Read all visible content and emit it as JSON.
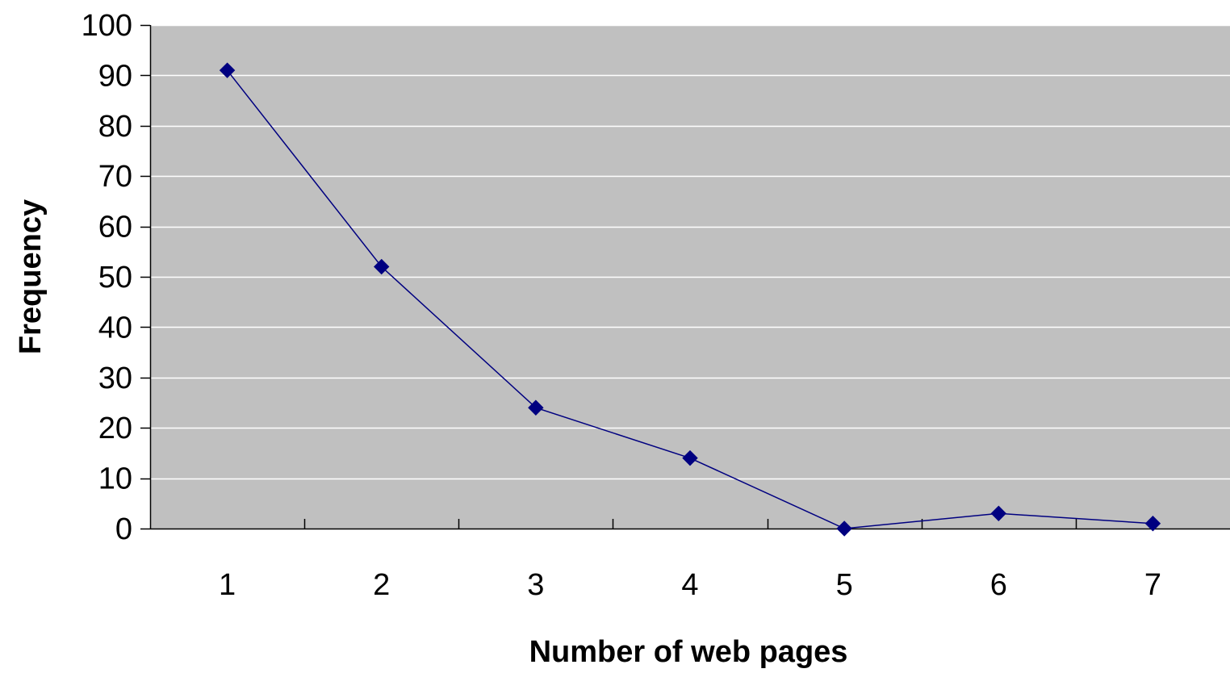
{
  "chart_data": {
    "type": "line",
    "x": [
      1,
      2,
      3,
      4,
      5,
      6,
      7
    ],
    "categories": [
      "1",
      "2",
      "3",
      "4",
      "5",
      "6",
      "7"
    ],
    "series": [
      {
        "values": [
          91,
          52,
          24,
          14,
          0,
          3,
          1
        ]
      }
    ],
    "xlabel": "Number of web pages",
    "ylabel": "Frequency",
    "ylim": [
      0,
      100
    ],
    "yticks": [
      0,
      10,
      20,
      30,
      40,
      50,
      60,
      70,
      80,
      90,
      100
    ],
    "ytick_labels": [
      "0",
      "10",
      "20",
      "30",
      "40",
      "50",
      "60",
      "70",
      "80",
      "90",
      "100"
    ],
    "grid": true,
    "legend": "none",
    "marker": "diamond"
  },
  "colors": {
    "plot_background": "#c0c0c0",
    "gridline": "#ffffff",
    "axis": "#000000",
    "series_line": "#000080",
    "series_marker": "#000080"
  }
}
